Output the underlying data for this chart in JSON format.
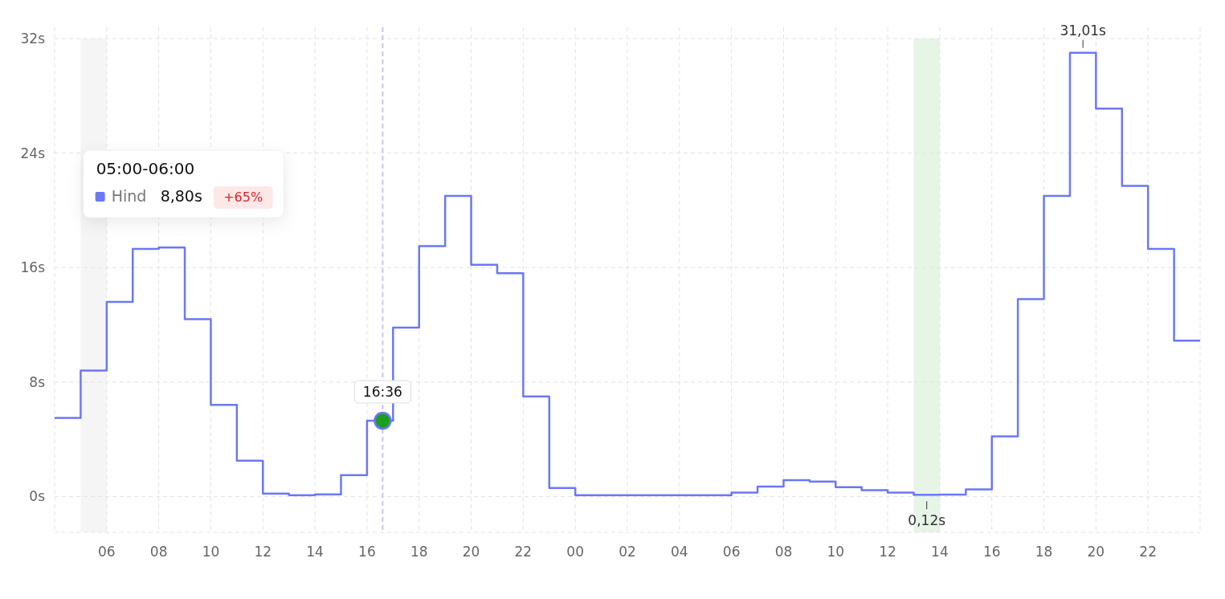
{
  "chart_data": {
    "type": "step",
    "x": [
      4,
      5,
      6,
      7,
      8,
      9,
      10,
      11,
      12,
      13,
      14,
      15,
      16,
      17,
      18,
      19,
      20,
      21,
      22,
      23,
      24,
      25,
      26,
      27,
      28,
      29,
      30,
      31,
      32,
      33,
      34,
      35,
      36,
      37,
      38,
      39,
      40,
      41,
      42,
      43,
      44,
      45,
      46,
      47,
      48
    ],
    "series": [
      {
        "name": "Hind",
        "color": "#6b78f6",
        "values": [
          5.5,
          8.8,
          13.6,
          17.3,
          17.4,
          12.4,
          6.4,
          2.5,
          0.2,
          0.1,
          0.15,
          1.5,
          5.3,
          11.8,
          17.5,
          21.0,
          16.2,
          15.6,
          7.0,
          0.6,
          0.1,
          0.1,
          0.1,
          0.1,
          0.1,
          0.1,
          0.27,
          0.7,
          1.15,
          1.05,
          0.66,
          0.44,
          0.27,
          0.12,
          0.13,
          0.5,
          4.2,
          13.8,
          21.0,
          31.01,
          27.1,
          21.7,
          17.3,
          10.9,
          10.9
        ]
      }
    ],
    "xlim": [
      4,
      48
    ],
    "xticks": [
      {
        "value": 4,
        "label": null
      },
      {
        "value": 6,
        "label": "06"
      },
      {
        "value": 8,
        "label": "08"
      },
      {
        "value": 10,
        "label": "10"
      },
      {
        "value": 12,
        "label": "12"
      },
      {
        "value": 14,
        "label": "14"
      },
      {
        "value": 16,
        "label": "16"
      },
      {
        "value": 18,
        "label": "18"
      },
      {
        "value": 20,
        "label": "20"
      },
      {
        "value": 22,
        "label": "22"
      },
      {
        "value": 24,
        "label": "00"
      },
      {
        "value": 26,
        "label": "02"
      },
      {
        "value": 28,
        "label": "04"
      },
      {
        "value": 30,
        "label": "06"
      },
      {
        "value": 32,
        "label": "08"
      },
      {
        "value": 34,
        "label": "10"
      },
      {
        "value": 36,
        "label": "12"
      },
      {
        "value": 38,
        "label": "14"
      },
      {
        "value": 40,
        "label": "16"
      },
      {
        "value": 42,
        "label": "18"
      },
      {
        "value": 44,
        "label": "20"
      },
      {
        "value": 46,
        "label": "22"
      },
      {
        "value": 48,
        "label": null
      }
    ],
    "ylim": [
      -2.5,
      32
    ],
    "yticks": [
      {
        "value": 0,
        "label": "0s"
      },
      {
        "value": 8,
        "label": "8s"
      },
      {
        "value": 16,
        "label": "16s"
      },
      {
        "value": 24,
        "label": "24s"
      },
      {
        "value": 32,
        "label": "32s"
      }
    ],
    "grid": true,
    "line_style": "solid",
    "bands": [
      {
        "axis": "x",
        "from": 5,
        "to": 6,
        "color": "#f5f5f5"
      },
      {
        "axis": "x",
        "from": 37,
        "to": 38,
        "color": "#e6f5e6"
      }
    ],
    "ref_lines": [
      {
        "axis": "x",
        "value": 16.6,
        "color": "#c9c5f5",
        "line_style": "dashed"
      }
    ],
    "annotations": [
      "05:00-06:00",
      "8,80s",
      "+65%",
      {
        "text": "16:36",
        "x": 16.6,
        "y": 5.3
      },
      {
        "text": "31,01s",
        "x": 43.5,
        "y": 31.01
      },
      {
        "text": "0,12s",
        "x": 37.5,
        "y": 0.12
      }
    ]
  }
}
